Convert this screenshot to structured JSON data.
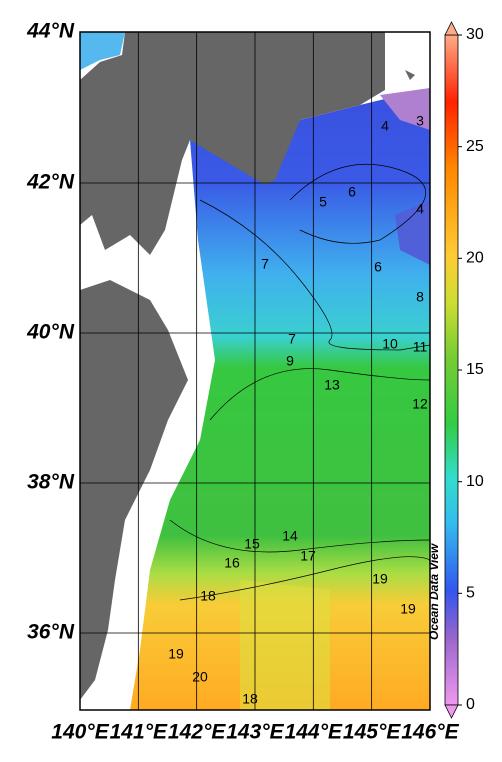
{
  "map": {
    "lat_labels": [
      "44°N",
      "42°N",
      "40°N",
      "38°N",
      "36°N"
    ],
    "lon_labels": [
      "140°E",
      "141°E",
      "142°E",
      "143°E",
      "144°E",
      "145°E",
      "146°E"
    ],
    "colorbar_ticks": [
      0,
      5,
      10,
      15,
      20,
      25,
      30
    ],
    "contour_labels": [
      "3",
      "4",
      "5",
      "6",
      "4",
      "7",
      "6",
      "8",
      "7",
      "9",
      "10",
      "11",
      "13",
      "12",
      "14",
      "15",
      "16",
      "17",
      "18",
      "19",
      "19",
      "19",
      "20",
      "18"
    ],
    "credit": "Ocean Data View"
  }
}
